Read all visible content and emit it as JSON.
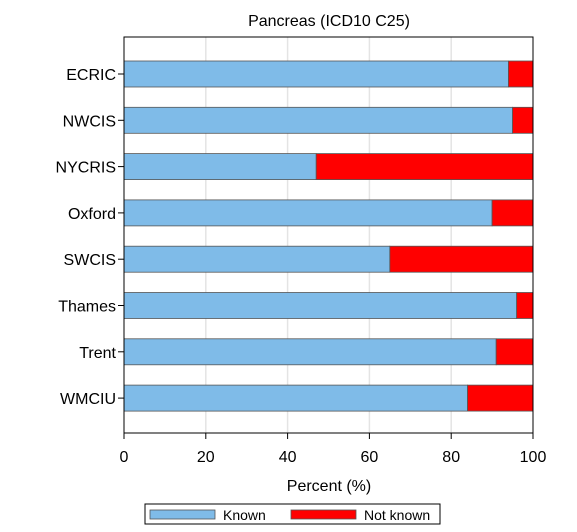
{
  "chart_data": {
    "type": "bar",
    "orientation": "horizontal",
    "stacked": true,
    "title": "Pancreas (ICD10 C25)",
    "xlabel": "Percent (%)",
    "ylabel": "",
    "categories": [
      "ECRIC",
      "NWCIS",
      "NYCRIS",
      "Oxford",
      "SWCIS",
      "Thames",
      "Trent",
      "WMCIU"
    ],
    "series": [
      {
        "name": "Known",
        "color": "#7FBBE8",
        "values": [
          94,
          95,
          47,
          90,
          65,
          96,
          91,
          84
        ]
      },
      {
        "name": "Not known",
        "color": "#FF0000",
        "values": [
          6,
          5,
          53,
          10,
          35,
          4,
          9,
          16
        ]
      }
    ],
    "xlim": [
      0,
      100
    ],
    "xticks": [
      0,
      20,
      40,
      60,
      80,
      100
    ],
    "grid": true,
    "legend_position": "bottom"
  }
}
